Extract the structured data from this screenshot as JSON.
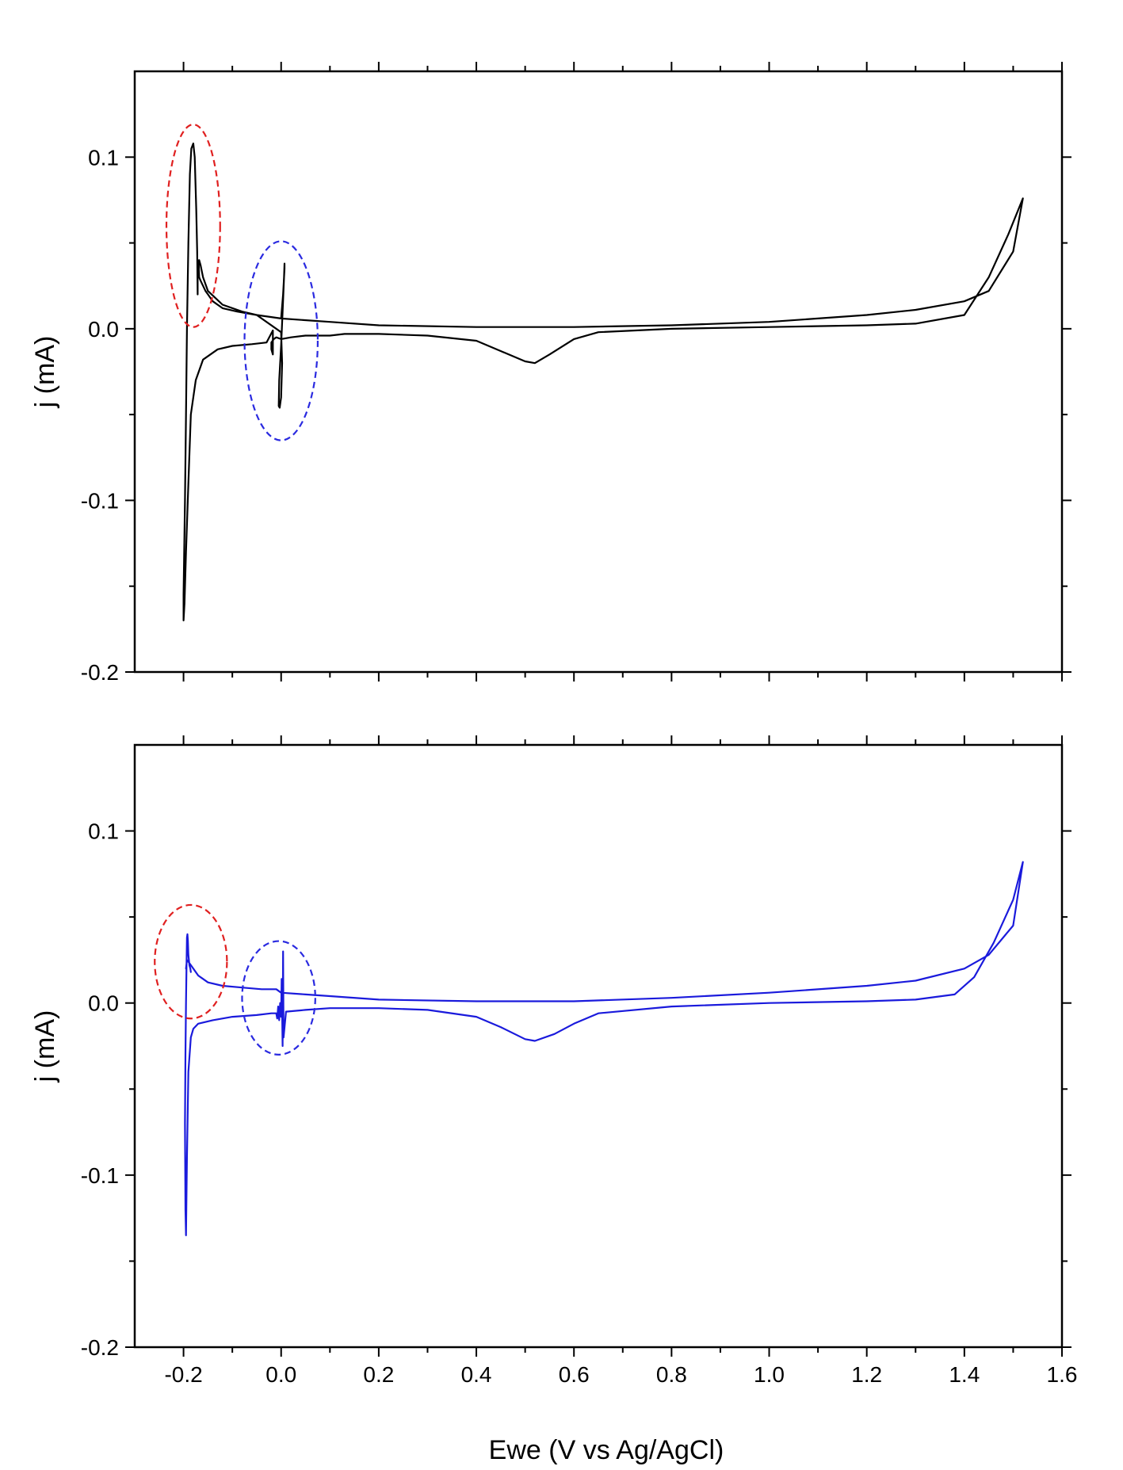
{
  "figure": {
    "xlabel": "Ewe (V vs Ag/AgCl)"
  },
  "chart_data": [
    {
      "type": "line",
      "title": "",
      "xlabel": "",
      "ylabel": "j (mA)",
      "xlim": [
        -0.3,
        1.6
      ],
      "ylim": [
        -0.2,
        0.15
      ],
      "x_ticks": [
        "",
        "",
        "",
        "",
        "",
        "",
        "",
        "",
        "",
        ""
      ],
      "x_tick_values": [
        -0.2,
        0.0,
        0.2,
        0.4,
        0.6,
        0.8,
        1.0,
        1.2,
        1.4,
        1.6
      ],
      "y_ticks": [
        "-0.2",
        "-0.1",
        "0.0",
        "0.1"
      ],
      "y_tick_values": [
        -0.2,
        -0.1,
        0.0,
        0.1
      ],
      "grid": false,
      "legend": "none",
      "series": [
        {
          "color": "#000000",
          "x": [
            -0.17,
            -0.168,
            -0.165,
            -0.16,
            -0.15,
            -0.12,
            -0.08,
            -0.05,
            0.0,
            0.1,
            0.2,
            0.4,
            0.6,
            0.8,
            1.0,
            1.2,
            1.3,
            1.4,
            1.45,
            1.5,
            1.52,
            1.49,
            1.45,
            1.4,
            1.3,
            1.2,
            1.0,
            0.8,
            0.65,
            0.6,
            0.55,
            0.52,
            0.5,
            0.45,
            0.4,
            0.3,
            0.2,
            0.13,
            0.1,
            0.05,
            0.02,
            0.0,
            -0.01,
            -0.015,
            -0.02,
            -0.02,
            -0.017,
            -0.017,
            -0.03,
            -0.06,
            -0.1,
            -0.13,
            -0.16,
            -0.175,
            -0.185,
            -0.19,
            -0.195,
            -0.198,
            -0.2,
            -0.2,
            -0.197,
            -0.195,
            -0.193,
            -0.19,
            -0.187,
            -0.184,
            -0.18,
            -0.177,
            -0.174,
            -0.172,
            -0.171,
            -0.171,
            -0.169,
            -0.168,
            -0.165,
            -0.16,
            -0.155,
            -0.15,
            -0.14,
            -0.12,
            -0.09,
            -0.05,
            0.0,
            0.002,
            0.0,
            -0.003,
            -0.005,
            -0.004,
            0.0,
            0.003,
            0.006,
            0.007,
            0.007,
            0.004,
            0.0
          ],
          "y": [
            0.035,
            0.04,
            0.037,
            0.03,
            0.022,
            0.014,
            0.01,
            0.008,
            0.006,
            0.004,
            0.002,
            0.001,
            0.001,
            0.002,
            0.004,
            0.008,
            0.011,
            0.016,
            0.022,
            0.045,
            0.076,
            0.055,
            0.03,
            0.008,
            0.003,
            0.002,
            0.001,
            0.0,
            -0.002,
            -0.006,
            -0.015,
            -0.02,
            -0.019,
            -0.013,
            -0.007,
            -0.004,
            -0.003,
            -0.003,
            -0.004,
            -0.004,
            -0.005,
            -0.006,
            -0.005,
            -0.006,
            -0.008,
            -0.012,
            -0.015,
            -0.001,
            -0.008,
            -0.009,
            -0.01,
            -0.012,
            -0.018,
            -0.03,
            -0.05,
            -0.09,
            -0.13,
            -0.16,
            -0.17,
            -0.155,
            -0.1,
            -0.05,
            0.0,
            0.05,
            0.09,
            0.105,
            0.108,
            0.1,
            0.07,
            0.045,
            0.02,
            0.04,
            0.038,
            0.03,
            0.028,
            0.025,
            0.022,
            0.02,
            0.016,
            0.012,
            0.01,
            0.008,
            -0.002,
            -0.02,
            -0.04,
            -0.046,
            -0.045,
            -0.03,
            -0.01,
            0.01,
            0.03,
            0.038,
            0.035,
            0.02,
            0.006
          ]
        }
      ],
      "annotations": [
        {
          "shape": "ellipse",
          "style": "dashed",
          "color": "#e02020",
          "center": [
            -0.18,
            0.06
          ],
          "radius": [
            0.055,
            0.059
          ]
        },
        {
          "shape": "ellipse",
          "style": "dashed",
          "color": "#2a2ae0",
          "center": [
            0.0,
            -0.007
          ],
          "radius": [
            0.075,
            0.058
          ]
        }
      ]
    },
    {
      "type": "line",
      "title": "",
      "xlabel": "Ewe (V vs Ag/AgCl)",
      "ylabel": "j (mA)",
      "xlim": [
        -0.3,
        1.6
      ],
      "ylim": [
        -0.2,
        0.15
      ],
      "x_ticks": [
        "-0.2",
        "0.0",
        "0.2",
        "0.4",
        "0.6",
        "0.8",
        "1.0",
        "1.2",
        "1.4",
        "1.6"
      ],
      "x_tick_values": [
        -0.2,
        0.0,
        0.2,
        0.4,
        0.6,
        0.8,
        1.0,
        1.2,
        1.4,
        1.6
      ],
      "y_ticks": [
        "-0.2",
        "-0.1",
        "0.0",
        "0.1"
      ],
      "y_tick_values": [
        -0.2,
        -0.1,
        0.0,
        0.1
      ],
      "grid": false,
      "legend": "none",
      "series": [
        {
          "color": "#1a1adc",
          "x": [
            -0.195,
            -0.193,
            -0.19,
            -0.185,
            -0.18,
            -0.17,
            -0.15,
            -0.12,
            -0.08,
            -0.04,
            -0.01,
            0.0,
            0.05,
            0.1,
            0.2,
            0.4,
            0.6,
            0.8,
            1.0,
            1.2,
            1.3,
            1.4,
            1.45,
            1.5,
            1.52,
            1.5,
            1.46,
            1.42,
            1.38,
            1.3,
            1.2,
            1.0,
            0.8,
            0.65,
            0.6,
            0.56,
            0.52,
            0.5,
            0.45,
            0.4,
            0.3,
            0.2,
            0.1,
            0.05,
            0.01,
            0.005,
            0.004,
            0.003,
            0.001,
            0.0,
            -0.002,
            -0.004,
            -0.006,
            -0.008,
            -0.01,
            -0.02,
            -0.05,
            -0.1,
            -0.14,
            -0.17,
            -0.18,
            -0.185,
            -0.19,
            -0.193,
            -0.195,
            -0.196,
            -0.197,
            -0.196,
            -0.195,
            -0.194,
            -0.193,
            -0.192,
            -0.191,
            -0.19,
            -0.188,
            -0.186,
            -0.185
          ],
          "y": [
            0.02,
            0.025,
            0.024,
            0.022,
            0.02,
            0.016,
            0.012,
            0.01,
            0.009,
            0.008,
            0.008,
            0.006,
            0.005,
            0.004,
            0.002,
            0.001,
            0.001,
            0.003,
            0.006,
            0.01,
            0.013,
            0.02,
            0.028,
            0.045,
            0.082,
            0.06,
            0.035,
            0.015,
            0.005,
            0.002,
            0.001,
            0.0,
            -0.002,
            -0.006,
            -0.012,
            -0.018,
            -0.022,
            -0.021,
            -0.014,
            -0.008,
            -0.004,
            -0.003,
            -0.003,
            -0.004,
            -0.005,
            -0.02,
            0.03,
            -0.025,
            0.014,
            -0.008,
            0.0,
            -0.01,
            -0.002,
            -0.009,
            -0.006,
            -0.006,
            -0.007,
            -0.008,
            -0.01,
            -0.012,
            -0.015,
            -0.02,
            -0.04,
            -0.09,
            -0.135,
            -0.12,
            -0.07,
            -0.03,
            0.0,
            0.02,
            0.038,
            0.04,
            0.036,
            0.028,
            0.022,
            0.02,
            0.018
          ]
        }
      ],
      "annotations": [
        {
          "shape": "ellipse",
          "style": "dashed",
          "color": "#e02020",
          "center": [
            -0.185,
            0.024
          ],
          "radius": [
            0.074,
            0.033
          ]
        },
        {
          "shape": "ellipse",
          "style": "dashed",
          "color": "#2a2ae0",
          "center": [
            -0.005,
            0.003
          ],
          "radius": [
            0.075,
            0.033
          ]
        }
      ]
    }
  ]
}
